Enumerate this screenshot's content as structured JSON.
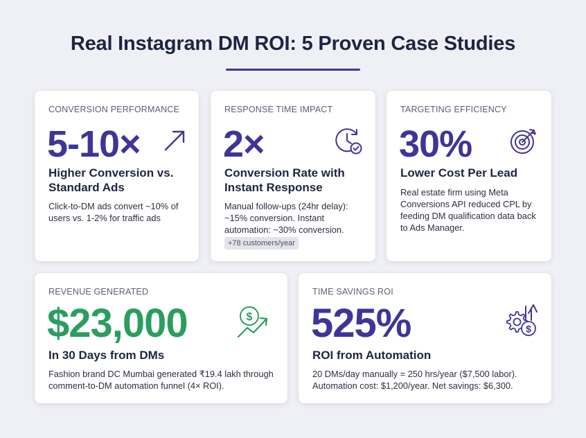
{
  "page": {
    "title": "Real Instagram DM ROI: 5 Proven Case Studies"
  },
  "cards": [
    {
      "label": "CONVERSION PERFORMANCE",
      "metric": "5-10×",
      "headline": "Higher Conversion vs. Standard Ads",
      "description": "Click-to-DM ads convert ~10% of users vs. 1-2% for traffic ads",
      "icon": "trend-arrow-icon",
      "color": "#3e3597"
    },
    {
      "label": "RESPONSE TIME IMPACT",
      "metric": "2×",
      "headline": "Conversion Rate with Instant Response",
      "description": "Manual follow-ups (24hr delay): ~15% conversion. Instant automation: ~30% conversion.",
      "chip": "+78 customers/year",
      "icon": "clock-check-icon",
      "color": "#3e3597"
    },
    {
      "label": "TARGETING EFFICIENCY",
      "metric": "30%",
      "headline": "Lower Cost Per Lead",
      "description": "Real estate firm using Meta Conversions API reduced CPL by feeding DM qualification data back to Ads Manager.",
      "icon": "target-icon",
      "color": "#3e3597"
    },
    {
      "label": "REVENUE GENERATED",
      "metric": "$23,000",
      "headline": "In 30 Days from DMs",
      "description": "Fashion brand DC Mumbai generated ₹19.4 lakh through comment-to-DM automation funnel (4× ROI).",
      "icon": "dollar-growth-icon",
      "color": "#2a9e5f"
    },
    {
      "label": "TIME SAVINGS ROI",
      "metric": "525%",
      "headline": "ROI from Automation",
      "description": "20 DMs/day manually = 250 hrs/year ($7,500 labor). Automation cost: $1,200/year. Net savings: $6,300.",
      "icon": "gear-dollar-icon",
      "color": "#3e3597"
    }
  ]
}
